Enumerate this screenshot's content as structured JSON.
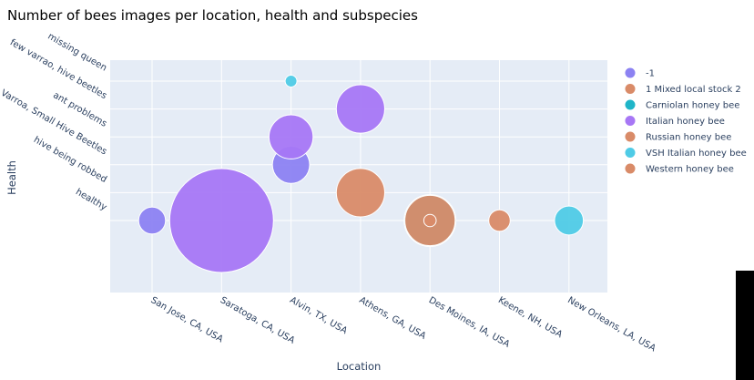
{
  "chart_data": {
    "type": "scatter",
    "title": "Number of bees images per location, health and subspecies",
    "xlabel": "Location",
    "ylabel": "Health",
    "x_categories": [
      "San Jose, CA, USA",
      "Saratoga, CA, USA",
      "Alvin, TX, USA",
      "Athens, GA, USA",
      "Des Moines, IA, USA",
      "Keene, NH, USA",
      "New Orleans, LA, USA"
    ],
    "y_categories": [
      "healthy",
      "hive being robbed",
      "Varroa, Small Hive Beetles",
      "ant problems",
      "few varrao, hive beetles",
      "missing queen"
    ],
    "legend": [
      {
        "name": "-1",
        "color": "#8c82f2"
      },
      {
        "name": "1 Mixed local stock 2",
        "color": "#d98b68"
      },
      {
        "name": "Carniolan honey bee",
        "color": "#1fb5c8"
      },
      {
        "name": "Italian honey bee",
        "color": "#a777f5"
      },
      {
        "name": "Russian honey bee",
        "color": "#d98b68"
      },
      {
        "name": "VSH Italian honey bee",
        "color": "#4fcbe6"
      },
      {
        "name": "Western honey bee",
        "color": "#d98b68"
      }
    ],
    "points": [
      {
        "series": "-1",
        "x": "San Jose, CA, USA",
        "y": "healthy",
        "size": 235
      },
      {
        "series": "Italian honey bee",
        "x": "Saratoga, CA, USA",
        "y": "healthy",
        "size": 3500
      },
      {
        "series": "-1",
        "x": "Alvin, TX, USA",
        "y": "Varroa, Small Hive Beetles",
        "size": 450
      },
      {
        "series": "Italian honey bee",
        "x": "Alvin, TX, USA",
        "y": "ant problems",
        "size": 630
      },
      {
        "series": "VSH Italian honey bee",
        "x": "Alvin, TX, USA",
        "y": "missing queen",
        "size": 45
      },
      {
        "series": "Italian honey bee",
        "x": "Athens, GA, USA",
        "y": "few varrao, hive beetles",
        "size": 760
      },
      {
        "series": "Russian honey bee",
        "x": "Athens, GA, USA",
        "y": "hive being robbed",
        "size": 760
      },
      {
        "series": "Carniolan honey bee",
        "x": "Des Moines, IA, USA",
        "y": "healthy",
        "size": 870
      },
      {
        "series": "1 Mixed local stock 2",
        "x": "Des Moines, IA, USA",
        "y": "healthy",
        "size": 820
      },
      {
        "series": "Western honey bee",
        "x": "Des Moines, IA, USA",
        "y": "healthy",
        "size": 50
      },
      {
        "series": "Western honey bee",
        "x": "Keene, NH, USA",
        "y": "healthy",
        "size": 150
      },
      {
        "series": "VSH Italian honey bee",
        "x": "New Orleans, LA, USA",
        "y": "healthy",
        "size": 270
      }
    ],
    "grid": true,
    "legend_position": "right"
  }
}
